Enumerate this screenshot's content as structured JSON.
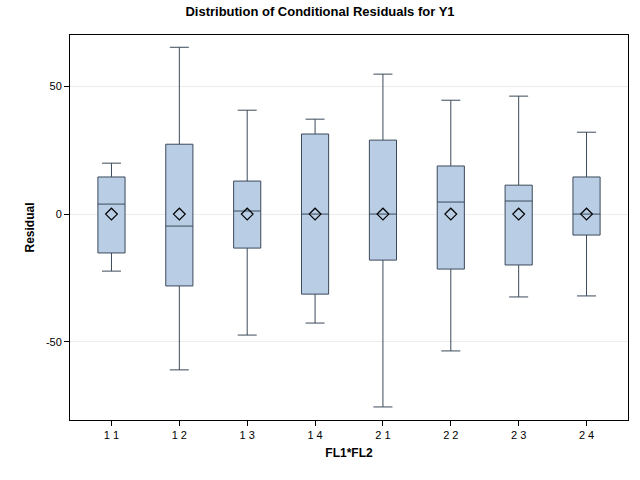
{
  "chart_data": {
    "type": "box",
    "title": "Distribution of Conditional Residuals for Y1",
    "x_label": "FL1*FL2",
    "y_label": "Residual",
    "categories": [
      "1 1",
      "1 2",
      "1 3",
      "1 4",
      "2 1",
      "2 2",
      "2 3",
      "2 4"
    ],
    "max": [
      19.9,
      65.2,
      40.6,
      37.1,
      54.7,
      44.5,
      46.1,
      32.0
    ],
    "q3": [
      14.5,
      27.3,
      12.9,
      31.3,
      28.9,
      18.8,
      11.3,
      14.5
    ],
    "median": [
      3.9,
      -4.7,
      1.2,
      0,
      0,
      4.7,
      5.1,
      0
    ],
    "q1": [
      -15.2,
      -28.1,
      -13.3,
      -31.3,
      -18.0,
      -21.5,
      -19.9,
      -8.2
    ],
    "min": [
      -22.3,
      -60.9,
      -47.3,
      -42.6,
      -75.4,
      -53.5,
      -32.4,
      -32.0
    ],
    "mean": [
      0,
      0,
      0,
      0,
      0,
      0,
      0,
      0
    ],
    "color": "#b9cde5",
    "marker": "diamond",
    "ylim": [
      -80.5,
      70
    ],
    "yticks": [
      -50,
      0,
      50
    ],
    "grid": true
  }
}
